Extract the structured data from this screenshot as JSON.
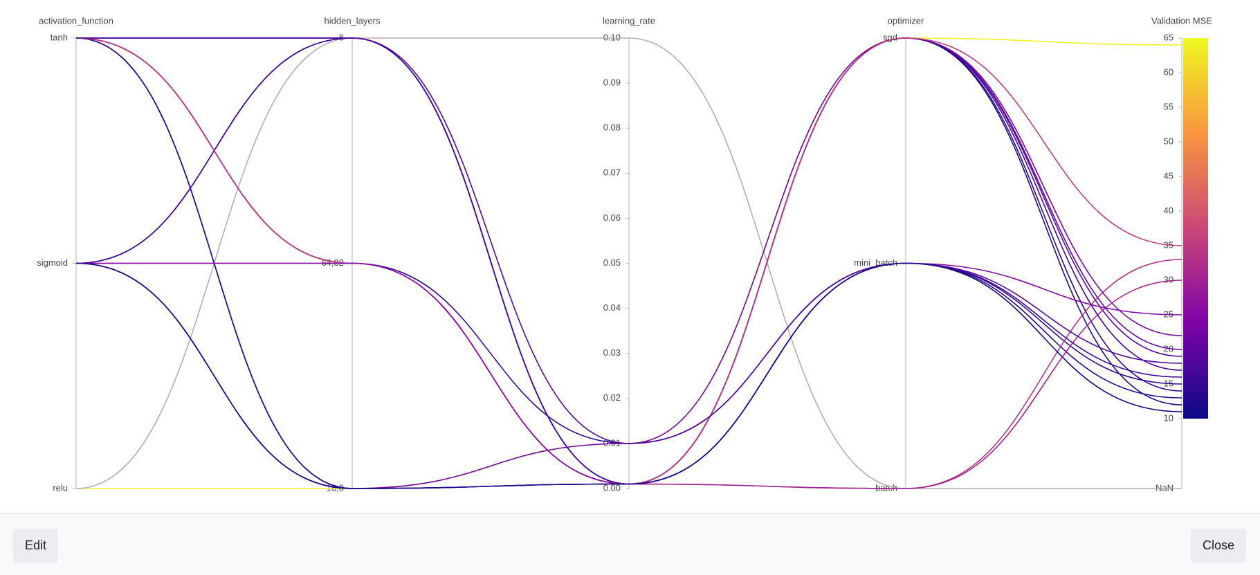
{
  "chart_data": {
    "type": "parallel",
    "dimensions": [
      {
        "label": "activation_function",
        "categories": [
          "tanh",
          "sigmoid",
          "relu"
        ],
        "values": [
          "relu",
          "relu",
          "tanh",
          "tanh",
          "tanh",
          "tanh",
          "tanh",
          "tanh",
          "sigmoid",
          "sigmoid",
          "sigmoid",
          "sigmoid",
          "sigmoid",
          "tanh",
          "sigmoid",
          "tanh",
          "sigmoid"
        ]
      },
      {
        "label": "hidden_layers",
        "categories": [
          "8",
          "64,32",
          "16,8"
        ],
        "values": [
          "16,8",
          "8",
          "8",
          "8",
          "16,8",
          "16,8",
          "64,32",
          "64,32",
          "8",
          "8",
          "64,32",
          "16,8",
          "16,8",
          "64,32",
          "64,32",
          "8",
          "16,8"
        ]
      },
      {
        "label": "learning_rate",
        "ylim": [
          0,
          0.1
        ],
        "yticks": [
          {
            "value": 0,
            "label": "0.00"
          },
          {
            "value": 0.01,
            "label": "0.01"
          },
          {
            "value": 0.02,
            "label": "0.02"
          },
          {
            "value": 0.03,
            "label": "0.03"
          },
          {
            "value": 0.04,
            "label": "0.04"
          },
          {
            "value": 0.05,
            "label": "0.05"
          },
          {
            "value": 0.06,
            "label": "0.06"
          },
          {
            "value": 0.07,
            "label": "0.07"
          },
          {
            "value": 0.08,
            "label": "0.08"
          },
          {
            "value": 0.09,
            "label": "0.09"
          },
          {
            "value": 0.1,
            "label": "0.10"
          }
        ],
        "values": [
          0.01,
          0.1,
          0.001,
          0.001,
          0.001,
          0.001,
          0.001,
          0.01,
          0.001,
          0.001,
          0.001,
          0.01,
          0.001,
          0.001,
          0.001,
          0.01,
          0.001
        ]
      },
      {
        "label": "optimizer",
        "categories": [
          "sgd",
          "mini_batch",
          "batch"
        ],
        "values": [
          "sgd",
          "batch",
          "sgd",
          "sgd",
          "sgd",
          "mini_batch",
          "sgd",
          "mini_batch",
          "sgd",
          "mini_batch",
          "batch",
          "sgd",
          "batch",
          "sgd",
          "mini_batch",
          "mini_batch",
          "mini_batch"
        ]
      },
      {
        "label": "Validation MSE",
        "ylim": [
          10,
          65
        ],
        "yticks": [
          10,
          15,
          20,
          25,
          30,
          35,
          40,
          45,
          50,
          55,
          60,
          65
        ],
        "nan_label": "NaN",
        "values": [
          64,
          null,
          14,
          17,
          12,
          13,
          19,
          15,
          20,
          16,
          33,
          22,
          30,
          35,
          25,
          18,
          11
        ]
      }
    ],
    "colorscale": [
      "#0d0887",
      "#7e03a8",
      "#cc4778",
      "#f89540",
      "#f0f921"
    ],
    "nan_color": "#b9a9b6"
  },
  "buttons": [
    "Edit",
    "Close"
  ]
}
